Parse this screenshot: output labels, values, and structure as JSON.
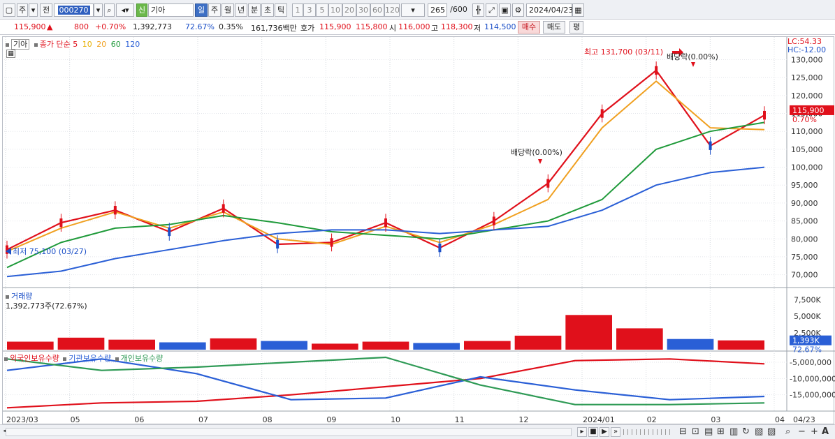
{
  "toolbar": {
    "menu_icon": "window-icon",
    "market": "주",
    "prefix": "전",
    "code": "000270",
    "badge": "신",
    "name": "기아",
    "periods": [
      "일",
      "주",
      "월",
      "년",
      "분",
      "초",
      "틱"
    ],
    "active_period": "일",
    "intervals": [
      "1",
      "3",
      "5",
      "10",
      "20",
      "30",
      "60",
      "120"
    ],
    "count": "265",
    "count_total": "/600",
    "date": "2024/04/23"
  },
  "quote": {
    "price": "115,900",
    "change_arrow": "▲",
    "change": "800",
    "change_pct": "+0.70%",
    "volume": "1,392,773",
    "volume_ratio": "72.67%",
    "turnover_rate": "0.35%",
    "amount": "161,736백만",
    "bid_label": "호가",
    "ask": "115,900",
    "bid": "115,800",
    "open_label": "시",
    "open": "116,000",
    "high_label": "고",
    "high": "118,300",
    "low_label": "저",
    "low": "114,500",
    "buy_label": "매수",
    "sell_label": "매도",
    "eval_label": "평"
  },
  "price_panel": {
    "stock_label": "기아",
    "ma_title": "종가 단순",
    "ma_periods": [
      "5",
      "10",
      "20",
      "60",
      "120"
    ],
    "ma_colors": [
      "#e0101b",
      "#e8b000",
      "#f0a020",
      "#1f9a3a",
      "#2a5fd6"
    ],
    "lc_label": "LC:54.33",
    "hc_label": "HC:-12.00",
    "y_ticks": [
      "130,000",
      "125,000",
      "120,000",
      "115,000",
      "110,000",
      "105,000",
      "100,000",
      "95,000",
      "90,000",
      "85,000",
      "80,000",
      "75,000",
      "70,000"
    ],
    "current_price_tag": "115,900",
    "current_pct_tag": "0.70%",
    "annotation_high": "최고 131,700 (03/11)",
    "annotation_low": "최저 75,100 (03/27)",
    "annotation_div1": "배당락(0.00%)",
    "annotation_div2": "배당락(0.00%)"
  },
  "volume_panel": {
    "title": "거래량",
    "value": "1,392,773주(72.67%)",
    "y_ticks": [
      "7,500K",
      "5,000K",
      "2,500K"
    ],
    "current_tag": "1,393K",
    "current_pct": "72.67%"
  },
  "holdings_panel": {
    "legend": [
      "외국인보유수량",
      "기관보유수량",
      "개인보유수량"
    ],
    "colors": [
      "#e0101b",
      "#2a5fd6",
      "#2e9a55"
    ],
    "y_ticks": [
      "-5,000,000",
      "-10,000,000",
      "-15,000,000"
    ]
  },
  "x_axis": {
    "labels": [
      "2023/03",
      "05",
      "06",
      "07",
      "08",
      "09",
      "10",
      "11",
      "12",
      "2024/01",
      "02",
      "03",
      "04",
      "04/23"
    ]
  },
  "chart_data": {
    "type": "line",
    "title": "",
    "xlabel": "",
    "ylabel": "",
    "x": [
      "2023/03",
      "2023/04",
      "2023/05",
      "2023/06",
      "2023/07",
      "2023/08",
      "2023/09",
      "2023/10",
      "2023/11",
      "2023/12",
      "2024/01",
      "2024/02",
      "2024/03",
      "2024/04",
      "2024/04/23"
    ],
    "ylim": [
      67000,
      134000
    ],
    "series": [
      {
        "name": "5",
        "values": [
          77000,
          84500,
          88000,
          82000,
          88500,
          78500,
          79000,
          84500,
          77500,
          85000,
          95500,
          115000,
          127000,
          106000,
          114500
        ]
      },
      {
        "name": "20",
        "values": [
          76500,
          83000,
          87500,
          83000,
          87500,
          80000,
          78500,
          83500,
          79000,
          84000,
          91000,
          111000,
          124000,
          111000,
          110500
        ]
      },
      {
        "name": "60",
        "values": [
          72000,
          79000,
          83000,
          84000,
          86500,
          84500,
          82000,
          81000,
          80000,
          82500,
          85000,
          91000,
          105000,
          110000,
          112500
        ]
      },
      {
        "name": "120",
        "values": [
          69500,
          71000,
          74500,
          77000,
          79500,
          81500,
          82500,
          82500,
          81500,
          82500,
          83500,
          88000,
          95000,
          98500,
          100000
        ]
      }
    ],
    "volume_k": [
      1200,
      1800,
      1500,
      1100,
      1700,
      1300,
      900,
      1200,
      1000,
      1300,
      2100,
      5200,
      3200,
      1600,
      1393
    ],
    "holdings": {
      "categories": [
        "2023/03",
        "2023/05",
        "2023/07",
        "2023/09",
        "2023/11",
        "2024/01",
        "2024/02",
        "2024/03",
        "2024/04/23"
      ],
      "외국인보유수량": [
        -19000000,
        -17500000,
        -17000000,
        -15000000,
        -12500000,
        -10000000,
        -4500000,
        -4000000,
        -5500000
      ],
      "기관보유수량": [
        -7500000,
        -4000000,
        -8500000,
        -16500000,
        -16000000,
        -9500000,
        -13500000,
        -16500000,
        -15500000
      ],
      "개인보유수량": [
        -4000000,
        -7500000,
        -6500000,
        -5000000,
        -3500000,
        -12000000,
        -18000000,
        -18000000,
        -17500000
      ]
    }
  }
}
